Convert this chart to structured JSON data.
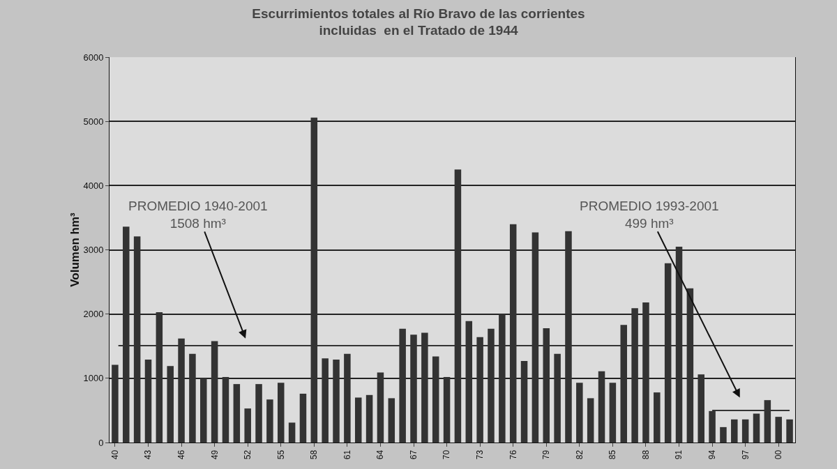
{
  "chart_data": {
    "type": "bar",
    "title": "Escurrimientos totales al Río Bravo de las corrientes\nincluidas  en el Tratado de 1944",
    "ylabel": "Volumen hm³",
    "categories": [
      "40",
      null,
      null,
      "43",
      null,
      null,
      "46",
      null,
      null,
      "49",
      null,
      null,
      "52",
      null,
      null,
      "55",
      null,
      null,
      "58",
      null,
      null,
      "61",
      null,
      null,
      "64",
      null,
      null,
      "67",
      null,
      null,
      "70",
      null,
      null,
      "73",
      null,
      null,
      "76",
      null,
      null,
      "79",
      null,
      null,
      "82",
      null,
      null,
      "85",
      null,
      null,
      "88",
      null,
      null,
      "91",
      null,
      null,
      "94",
      null,
      null,
      "97",
      null,
      null,
      "00",
      null
    ],
    "series": [
      {
        "color": "#333333",
        "values": [
          1210,
          3360,
          3210,
          1290,
          2030,
          1190,
          1620,
          1380,
          1000,
          1580,
          1020,
          910,
          530,
          910,
          670,
          930,
          310,
          760,
          5060,
          1310,
          1290,
          1380,
          700,
          740,
          1090,
          690,
          1770,
          1680,
          1710,
          1340,
          1020,
          4250,
          1890,
          1640,
          1770,
          2000,
          3400,
          1270,
          3270,
          1780,
          1380,
          3290,
          930,
          690,
          1110,
          930,
          1830,
          2090,
          2180,
          780,
          2790,
          3050,
          2400,
          1060,
          490,
          240,
          360,
          360,
          450,
          660,
          400,
          360
        ]
      },
      {
        "type": "line",
        "color": "#333333",
        "values": [
          null,
          null,
          null,
          null,
          null,
          null,
          null,
          null,
          null,
          null,
          null,
          null,
          null,
          null,
          null,
          null,
          null,
          null,
          null,
          null,
          null,
          null,
          null,
          null,
          null,
          null,
          null,
          null,
          null,
          null,
          null,
          null,
          null,
          null,
          null,
          null,
          null,
          null,
          null,
          null,
          null,
          null,
          null,
          null,
          null,
          null,
          null,
          null,
          null,
          null,
          null,
          null,
          null,
          null,
          499,
          499,
          499,
          499,
          499,
          499,
          499,
          499
        ]
      }
    ],
    "ref_lines": [
      {
        "axis": "y",
        "value": 1508,
        "label": "PROMEDIO 1940-2001\n1508 hm³",
        "color": "#333333"
      }
    ],
    "annotations": [
      "PROMEDIO 1993-2001\n499 hm³"
    ],
    "ylim": [
      0,
      6000
    ],
    "yticks": [
      0,
      1000,
      2000,
      3000,
      4000,
      5000,
      6000
    ],
    "grid": "y",
    "legend": false
  }
}
